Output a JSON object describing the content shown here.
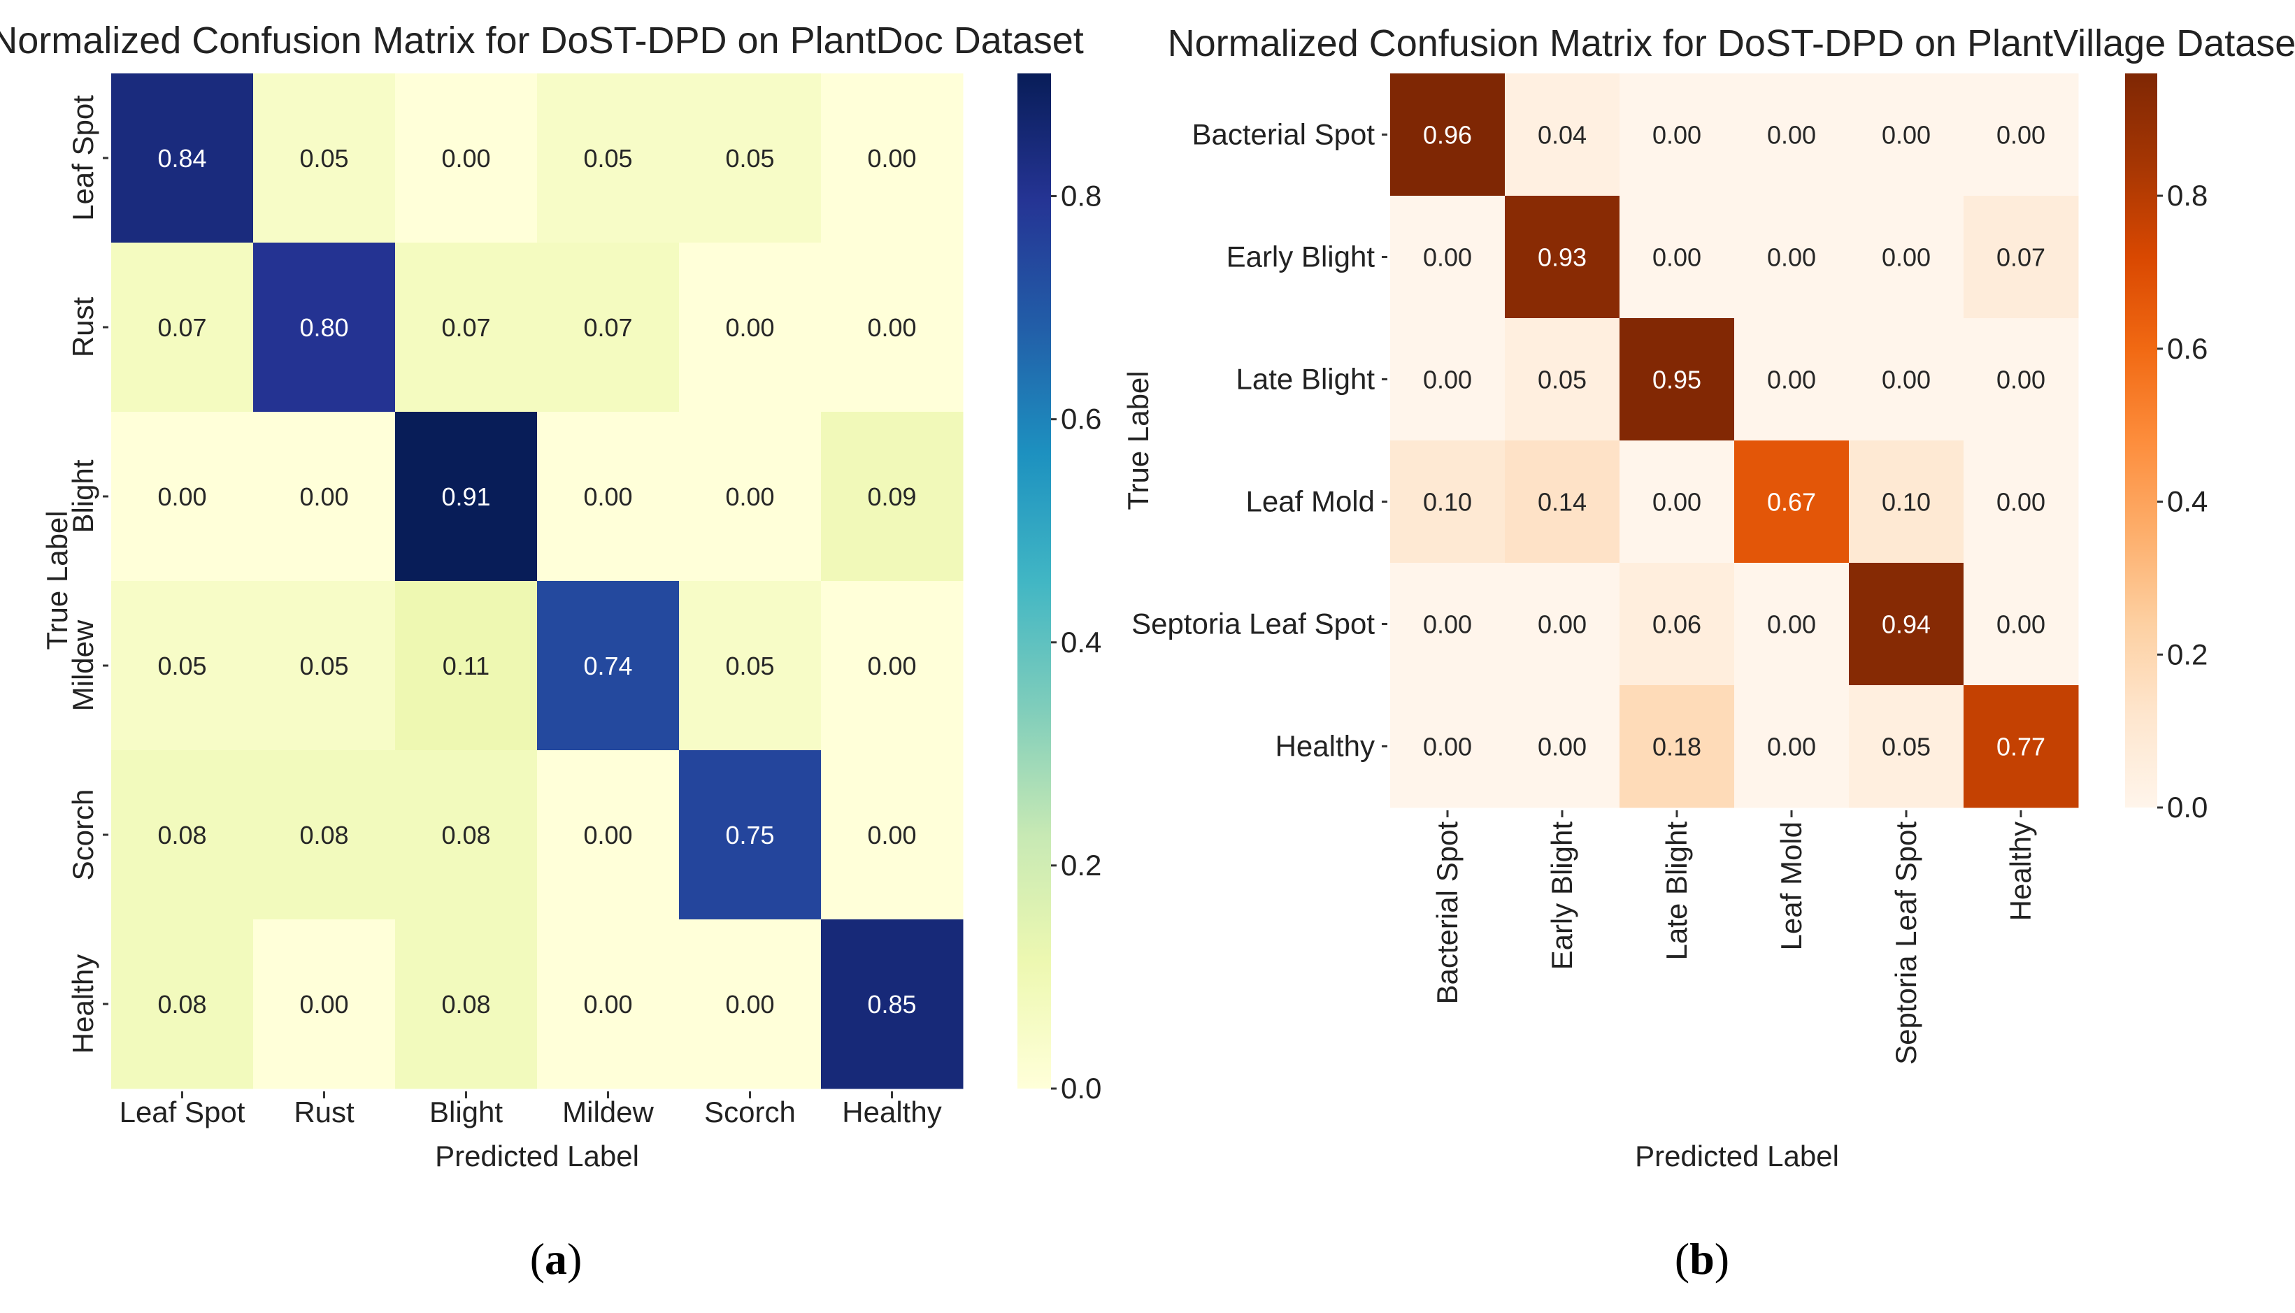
{
  "chart_data": [
    {
      "type": "heatmap",
      "title": "Normalized Confusion Matrix for DoST-DPD on PlantDoc Dataset",
      "xlabel": "Predicted Label",
      "ylabel": "True Label",
      "caption_letter": "a",
      "colormap": "YlGnBu",
      "vmin": 0.0,
      "vmax": 0.91,
      "colorbar_ticks": [
        "0.0",
        "0.2",
        "0.4",
        "0.6",
        "0.8"
      ],
      "x_categories": [
        "Leaf Spot",
        "Rust",
        "Blight",
        "Mildew",
        "Scorch",
        "Healthy"
      ],
      "y_categories": [
        "Leaf Spot",
        "Rust",
        "Blight",
        "Mildew",
        "Scorch",
        "Healthy"
      ],
      "values": [
        [
          0.84,
          0.05,
          0.0,
          0.05,
          0.05,
          0.0
        ],
        [
          0.07,
          0.8,
          0.07,
          0.07,
          0.0,
          0.0
        ],
        [
          0.0,
          0.0,
          0.91,
          0.0,
          0.0,
          0.09
        ],
        [
          0.05,
          0.05,
          0.11,
          0.74,
          0.05,
          0.0
        ],
        [
          0.08,
          0.08,
          0.08,
          0.0,
          0.75,
          0.0
        ],
        [
          0.08,
          0.0,
          0.08,
          0.0,
          0.0,
          0.85
        ]
      ]
    },
    {
      "type": "heatmap",
      "title": "Normalized Confusion Matrix for DoST-DPD on PlantVillage Dataset",
      "xlabel": "Predicted Label",
      "ylabel": "True Label",
      "caption_letter": "b",
      "colormap": "Oranges",
      "vmin": 0.0,
      "vmax": 0.96,
      "colorbar_ticks": [
        "0.0",
        "0.2",
        "0.4",
        "0.6",
        "0.8"
      ],
      "x_categories": [
        "Bacterial Spot",
        "Early Blight",
        "Late Blight",
        "Leaf Mold",
        "Septoria Leaf Spot",
        "Healthy"
      ],
      "y_categories": [
        "Bacterial Spot",
        "Early Blight",
        "Late Blight",
        "Leaf Mold",
        "Septoria Leaf Spot",
        "Healthy"
      ],
      "values": [
        [
          0.96,
          0.04,
          0.0,
          0.0,
          0.0,
          0.0
        ],
        [
          0.0,
          0.93,
          0.0,
          0.0,
          0.0,
          0.07
        ],
        [
          0.0,
          0.05,
          0.95,
          0.0,
          0.0,
          0.0
        ],
        [
          0.1,
          0.14,
          0.0,
          0.67,
          0.1,
          0.0
        ],
        [
          0.0,
          0.0,
          0.06,
          0.0,
          0.94,
          0.0
        ],
        [
          0.0,
          0.0,
          0.18,
          0.0,
          0.05,
          0.77
        ]
      ]
    }
  ],
  "colormaps": {
    "YlGnBu": [
      "#ffffd9",
      "#edf8b1",
      "#c7e9b4",
      "#7fcdbb",
      "#41b6c4",
      "#1d91c0",
      "#225ea8",
      "#253494",
      "#081d58"
    ],
    "Oranges": [
      "#fff5eb",
      "#fee6ce",
      "#fdd0a2",
      "#fdae6b",
      "#fd8d3c",
      "#f16913",
      "#d94801",
      "#a63603",
      "#7f2704"
    ]
  }
}
